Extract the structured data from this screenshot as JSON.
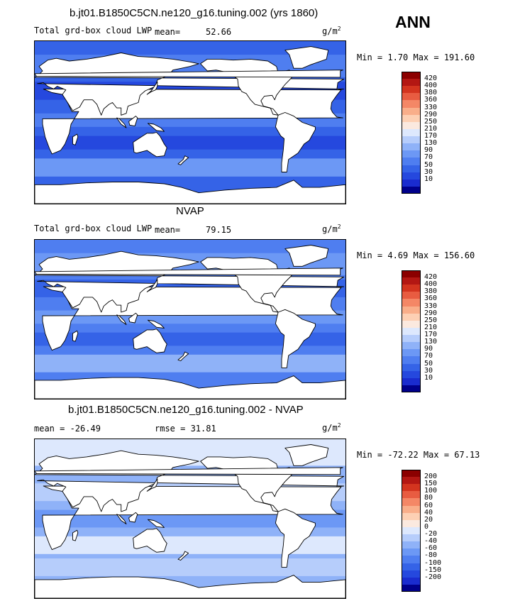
{
  "season": "ANN",
  "colors": {
    "land": "#ffffff",
    "outline": "#000000",
    "lwp_scale": [
      "#00008b",
      "#1a2ccf",
      "#2548de",
      "#3563e7",
      "#4f7ef0",
      "#6c98f5",
      "#8fb2f8",
      "#b6cdfb",
      "#dde8fd",
      "#fbe9df",
      "#fdd0b4",
      "#f9ae8a",
      "#f48766",
      "#e85c41",
      "#d3341f",
      "#b31713",
      "#8b0000"
    ],
    "diff_scale": [
      "#00008b",
      "#1a2ccf",
      "#2548de",
      "#3563e7",
      "#4f7ef0",
      "#6c98f5",
      "#8fb2f8",
      "#b6cdfb",
      "#dde8fd",
      "#fbe9df",
      "#fdd0b4",
      "#f9ae8a",
      "#f48766",
      "#e85c41",
      "#d3341f",
      "#b31713",
      "#8b0000"
    ]
  },
  "panels": [
    {
      "title": "b.jt01.B1850C5CN.ne120_g16.tuning.002 (yrs 1860)",
      "variable": "Total grd-box cloud LWP",
      "mean_label": "mean=",
      "mean_value": "52.66",
      "units_base": "g/m",
      "units_exp": "2",
      "range_text": "Min =    1.70 Max = 191.60",
      "colorbar_labels": [
        "420",
        "400",
        "380",
        "360",
        "330",
        "290",
        "250",
        "210",
        "170",
        "130",
        "90",
        "70",
        "50",
        "30",
        "10"
      ],
      "ocean_mean_class": 3
    },
    {
      "title": "NVAP",
      "variable": "Total grd-box cloud LWP",
      "mean_label": "mean=",
      "mean_value": "79.15",
      "units_base": "g/m",
      "units_exp": "2",
      "range_text": "Min =    4.69 Max = 156.60",
      "colorbar_labels": [
        "420",
        "400",
        "380",
        "360",
        "330",
        "290",
        "250",
        "210",
        "170",
        "130",
        "90",
        "70",
        "50",
        "30",
        "10"
      ],
      "ocean_mean_class": 4
    },
    {
      "title": "b.jt01.B1850C5CN.ne120_g16.tuning.002 - NVAP",
      "mean_text": "mean = -26.49",
      "rmse_text": "rmse =   31.81",
      "units_base": "g/m",
      "units_exp": "2",
      "range_text": "Min = -72.22 Max =  67.13",
      "colorbar_labels": [
        "200",
        "150",
        "100",
        "80",
        "60",
        "40",
        "20",
        "0",
        "-20",
        "-40",
        "-60",
        "-80",
        "-100",
        "-150",
        "-200"
      ],
      "ocean_mean_class": 6
    }
  ]
}
